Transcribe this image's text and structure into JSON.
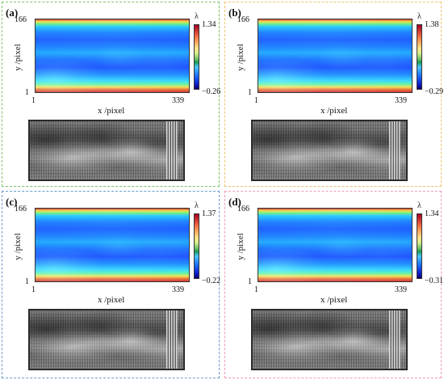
{
  "panels": [
    {
      "id": "a",
      "label": "(a)",
      "border_color": "#7cc36b",
      "y_tick_top": "166",
      "y_tick_bottom": "1",
      "x_tick_left": "1",
      "x_tick_right": "339",
      "ylabel": "y /pixel",
      "xlabel": "x /pixel",
      "colorbar_label": "λ",
      "colorbar_max": "1.34",
      "colorbar_min": "−0.26"
    },
    {
      "id": "b",
      "label": "(b)",
      "border_color": "#f0c36b",
      "y_tick_top": "166",
      "y_tick_bottom": "1",
      "x_tick_left": "1",
      "x_tick_right": "339",
      "ylabel": "y /pixel",
      "xlabel": "x /pixel",
      "colorbar_label": "λ",
      "colorbar_max": "1.38",
      "colorbar_min": "−0.29"
    },
    {
      "id": "c",
      "label": "(c)",
      "border_color": "#6e9ccc",
      "y_tick_top": "166",
      "y_tick_bottom": "1",
      "x_tick_left": "1",
      "x_tick_right": "339",
      "ylabel": "y /pixel",
      "xlabel": "x /pixel",
      "colorbar_label": "λ",
      "colorbar_max": "1.37",
      "colorbar_min": "−0.22"
    },
    {
      "id": "d",
      "label": "(d)",
      "border_color": "#f09ab7",
      "y_tick_top": "166",
      "y_tick_bottom": "1",
      "x_tick_left": "1",
      "x_tick_right": "339",
      "ylabel": "y /pixel",
      "xlabel": "x /pixel",
      "colorbar_label": "λ",
      "colorbar_max": "1.34",
      "colorbar_min": "−0.31"
    }
  ]
}
